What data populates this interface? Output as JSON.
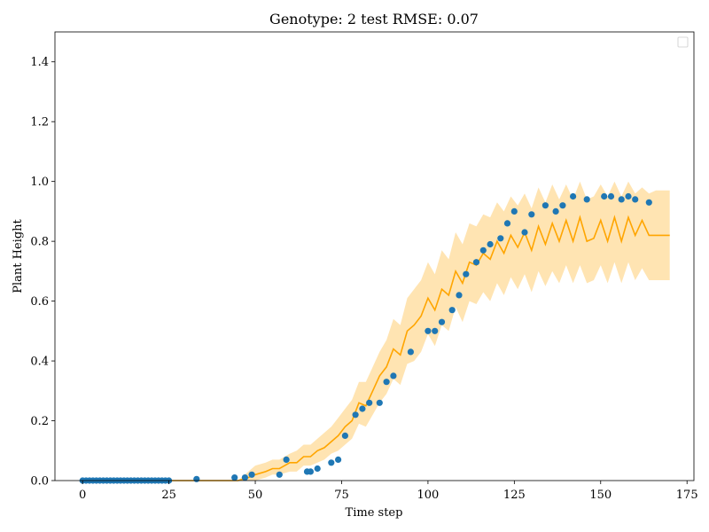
{
  "chart_data": {
    "type": "line",
    "title": "Genotype: 2 test RMSE: 0.07",
    "xlabel": "Time step",
    "ylabel": "Plant Height",
    "xlim": [
      -8,
      177
    ],
    "ylim": [
      0,
      1.5
    ],
    "xticks": [
      0,
      25,
      50,
      75,
      100,
      125,
      150,
      175
    ],
    "yticks": [
      0.0,
      0.2,
      0.4,
      0.6,
      0.8,
      1.0,
      1.2,
      1.4
    ],
    "grid": false,
    "legend": {
      "position": "top-right",
      "entries": []
    },
    "colors": {
      "prediction": "#ffa500",
      "band": "#ffa500",
      "observed": "#1f77b4"
    },
    "series": [
      {
        "type": "line",
        "x": [
          0,
          5,
          10,
          15,
          20,
          25,
          30,
          35,
          40,
          45,
          48,
          50,
          53,
          55,
          57,
          60,
          62,
          64,
          66,
          68,
          70,
          72,
          74,
          76,
          78,
          80,
          82,
          84,
          86,
          88,
          90,
          92,
          94,
          96,
          98,
          100,
          102,
          104,
          106,
          108,
          110,
          112,
          114,
          116,
          118,
          120,
          122,
          124,
          126,
          128,
          130,
          132,
          134,
          136,
          138,
          140,
          142,
          144,
          146,
          148,
          150,
          152,
          154,
          156,
          158,
          160,
          162,
          164,
          166,
          168,
          170
        ],
        "y": [
          0.0,
          0.0,
          0.0,
          0.0,
          0.0,
          0.0,
          0.0,
          0.0,
          0.0,
          0.0,
          0.01,
          0.02,
          0.03,
          0.04,
          0.04,
          0.06,
          0.06,
          0.08,
          0.08,
          0.1,
          0.11,
          0.13,
          0.15,
          0.18,
          0.2,
          0.26,
          0.25,
          0.3,
          0.35,
          0.38,
          0.44,
          0.42,
          0.5,
          0.52,
          0.55,
          0.61,
          0.57,
          0.64,
          0.62,
          0.7,
          0.66,
          0.73,
          0.72,
          0.76,
          0.74,
          0.8,
          0.76,
          0.82,
          0.78,
          0.83,
          0.77,
          0.85,
          0.79,
          0.86,
          0.8,
          0.87,
          0.8,
          0.88,
          0.8,
          0.81,
          0.87,
          0.8,
          0.88,
          0.8,
          0.88,
          0.82,
          0.87,
          0.82,
          0.82,
          0.82,
          0.82
        ],
        "lower": [
          0.0,
          0.0,
          0.0,
          0.0,
          0.0,
          0.0,
          0.0,
          0.0,
          0.0,
          0.0,
          0.0,
          0.0,
          0.01,
          0.02,
          0.02,
          0.03,
          0.03,
          0.05,
          0.05,
          0.06,
          0.07,
          0.09,
          0.1,
          0.12,
          0.14,
          0.19,
          0.18,
          0.22,
          0.26,
          0.29,
          0.34,
          0.32,
          0.39,
          0.4,
          0.43,
          0.49,
          0.45,
          0.52,
          0.5,
          0.58,
          0.53,
          0.6,
          0.59,
          0.63,
          0.6,
          0.66,
          0.62,
          0.68,
          0.64,
          0.69,
          0.63,
          0.7,
          0.65,
          0.7,
          0.66,
          0.72,
          0.66,
          0.72,
          0.66,
          0.67,
          0.72,
          0.66,
          0.73,
          0.66,
          0.73,
          0.67,
          0.71,
          0.67,
          0.67,
          0.67,
          0.67
        ],
        "upper": [
          0.0,
          0.0,
          0.0,
          0.0,
          0.0,
          0.0,
          0.0,
          0.0,
          0.0,
          0.0,
          0.03,
          0.05,
          0.06,
          0.07,
          0.07,
          0.09,
          0.1,
          0.12,
          0.12,
          0.14,
          0.16,
          0.18,
          0.21,
          0.24,
          0.27,
          0.33,
          0.33,
          0.38,
          0.43,
          0.47,
          0.54,
          0.52,
          0.61,
          0.64,
          0.67,
          0.73,
          0.69,
          0.77,
          0.74,
          0.83,
          0.79,
          0.86,
          0.85,
          0.89,
          0.88,
          0.93,
          0.9,
          0.95,
          0.92,
          0.96,
          0.91,
          0.98,
          0.93,
          0.99,
          0.94,
          0.99,
          0.94,
          1.0,
          0.94,
          0.95,
          0.99,
          0.95,
          1.0,
          0.95,
          1.0,
          0.96,
          0.98,
          0.96,
          0.97,
          0.97,
          0.97
        ]
      },
      {
        "type": "scatter",
        "x": [
          0,
          1,
          2,
          3,
          4,
          5,
          6,
          7,
          8,
          9,
          10,
          11,
          12,
          13,
          14,
          15,
          16,
          17,
          18,
          19,
          20,
          21,
          22,
          23,
          24,
          25,
          33,
          44,
          47,
          49,
          57,
          59,
          65,
          66,
          68,
          72,
          74,
          76,
          79,
          81,
          83,
          86,
          88,
          90,
          95,
          100,
          102,
          104,
          107,
          109,
          111,
          114,
          116,
          118,
          121,
          123,
          125,
          128,
          130,
          134,
          137,
          139,
          142,
          146,
          151,
          153,
          156,
          158,
          160,
          164
        ],
        "y": [
          0.0,
          0.0,
          0.0,
          0.0,
          0.0,
          0.0,
          0.0,
          0.0,
          0.0,
          0.0,
          0.0,
          0.0,
          0.0,
          0.0,
          0.0,
          0.0,
          0.0,
          0.0,
          0.0,
          0.0,
          0.0,
          0.0,
          0.0,
          0.0,
          0.0,
          0.0,
          0.005,
          0.01,
          0.01,
          0.02,
          0.02,
          0.07,
          0.03,
          0.03,
          0.04,
          0.06,
          0.07,
          0.15,
          0.22,
          0.24,
          0.26,
          0.26,
          0.33,
          0.35,
          0.43,
          0.5,
          0.5,
          0.53,
          0.57,
          0.62,
          0.69,
          0.73,
          0.77,
          0.79,
          0.81,
          0.86,
          0.9,
          0.83,
          0.89,
          0.92,
          0.9,
          0.92,
          0.95,
          0.94,
          0.95,
          0.95,
          0.94,
          0.95,
          0.94,
          0.93
        ]
      }
    ]
  }
}
